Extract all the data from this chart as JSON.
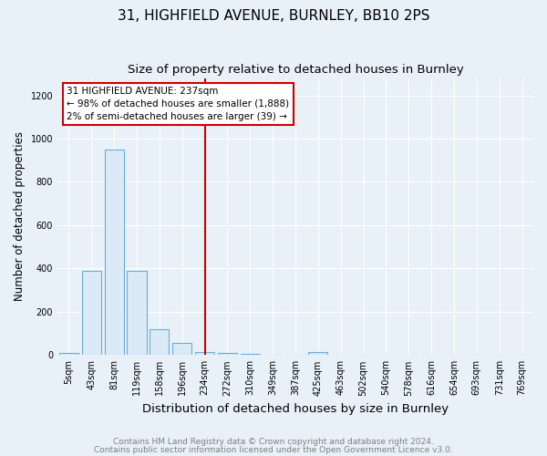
{
  "title1": "31, HIGHFIELD AVENUE, BURNLEY, BB10 2PS",
  "title2": "Size of property relative to detached houses in Burnley",
  "xlabel": "Distribution of detached houses by size in Burnley",
  "ylabel": "Number of detached properties",
  "categories": [
    "5sqm",
    "43sqm",
    "81sqm",
    "119sqm",
    "158sqm",
    "196sqm",
    "234sqm",
    "272sqm",
    "310sqm",
    "349sqm",
    "387sqm",
    "425sqm",
    "463sqm",
    "502sqm",
    "540sqm",
    "578sqm",
    "616sqm",
    "654sqm",
    "693sqm",
    "731sqm",
    "769sqm"
  ],
  "values": [
    10,
    390,
    950,
    390,
    120,
    55,
    15,
    10,
    5,
    3,
    0,
    15,
    0,
    0,
    0,
    0,
    0,
    0,
    0,
    0,
    0
  ],
  "bar_facecolor": "#daeaf7",
  "bar_edgecolor": "#6aaed6",
  "redline_index": 6,
  "annotation_text": "31 HIGHFIELD AVENUE: 237sqm\n← 98% of detached houses are smaller (1,888)\n2% of semi-detached houses are larger (39) →",
  "annotation_box_edgecolor": "#cc0000",
  "annotation_box_facecolor": "#ffffff",
  "redline_color": "#cc0000",
  "ylim": [
    0,
    1280
  ],
  "yticks": [
    0,
    200,
    400,
    600,
    800,
    1000,
    1200
  ],
  "footnote1": "Contains HM Land Registry data © Crown copyright and database right 2024.",
  "footnote2": "Contains public sector information licensed under the Open Government Licence v3.0.",
  "bg_color": "#e8f0f8",
  "plot_bg_color": "#e8f0f8",
  "title1_fontsize": 11,
  "title2_fontsize": 9.5,
  "xlabel_fontsize": 9.5,
  "ylabel_fontsize": 8.5,
  "tick_fontsize": 7,
  "footnote_fontsize": 6.5,
  "annot_fontsize": 7.5
}
